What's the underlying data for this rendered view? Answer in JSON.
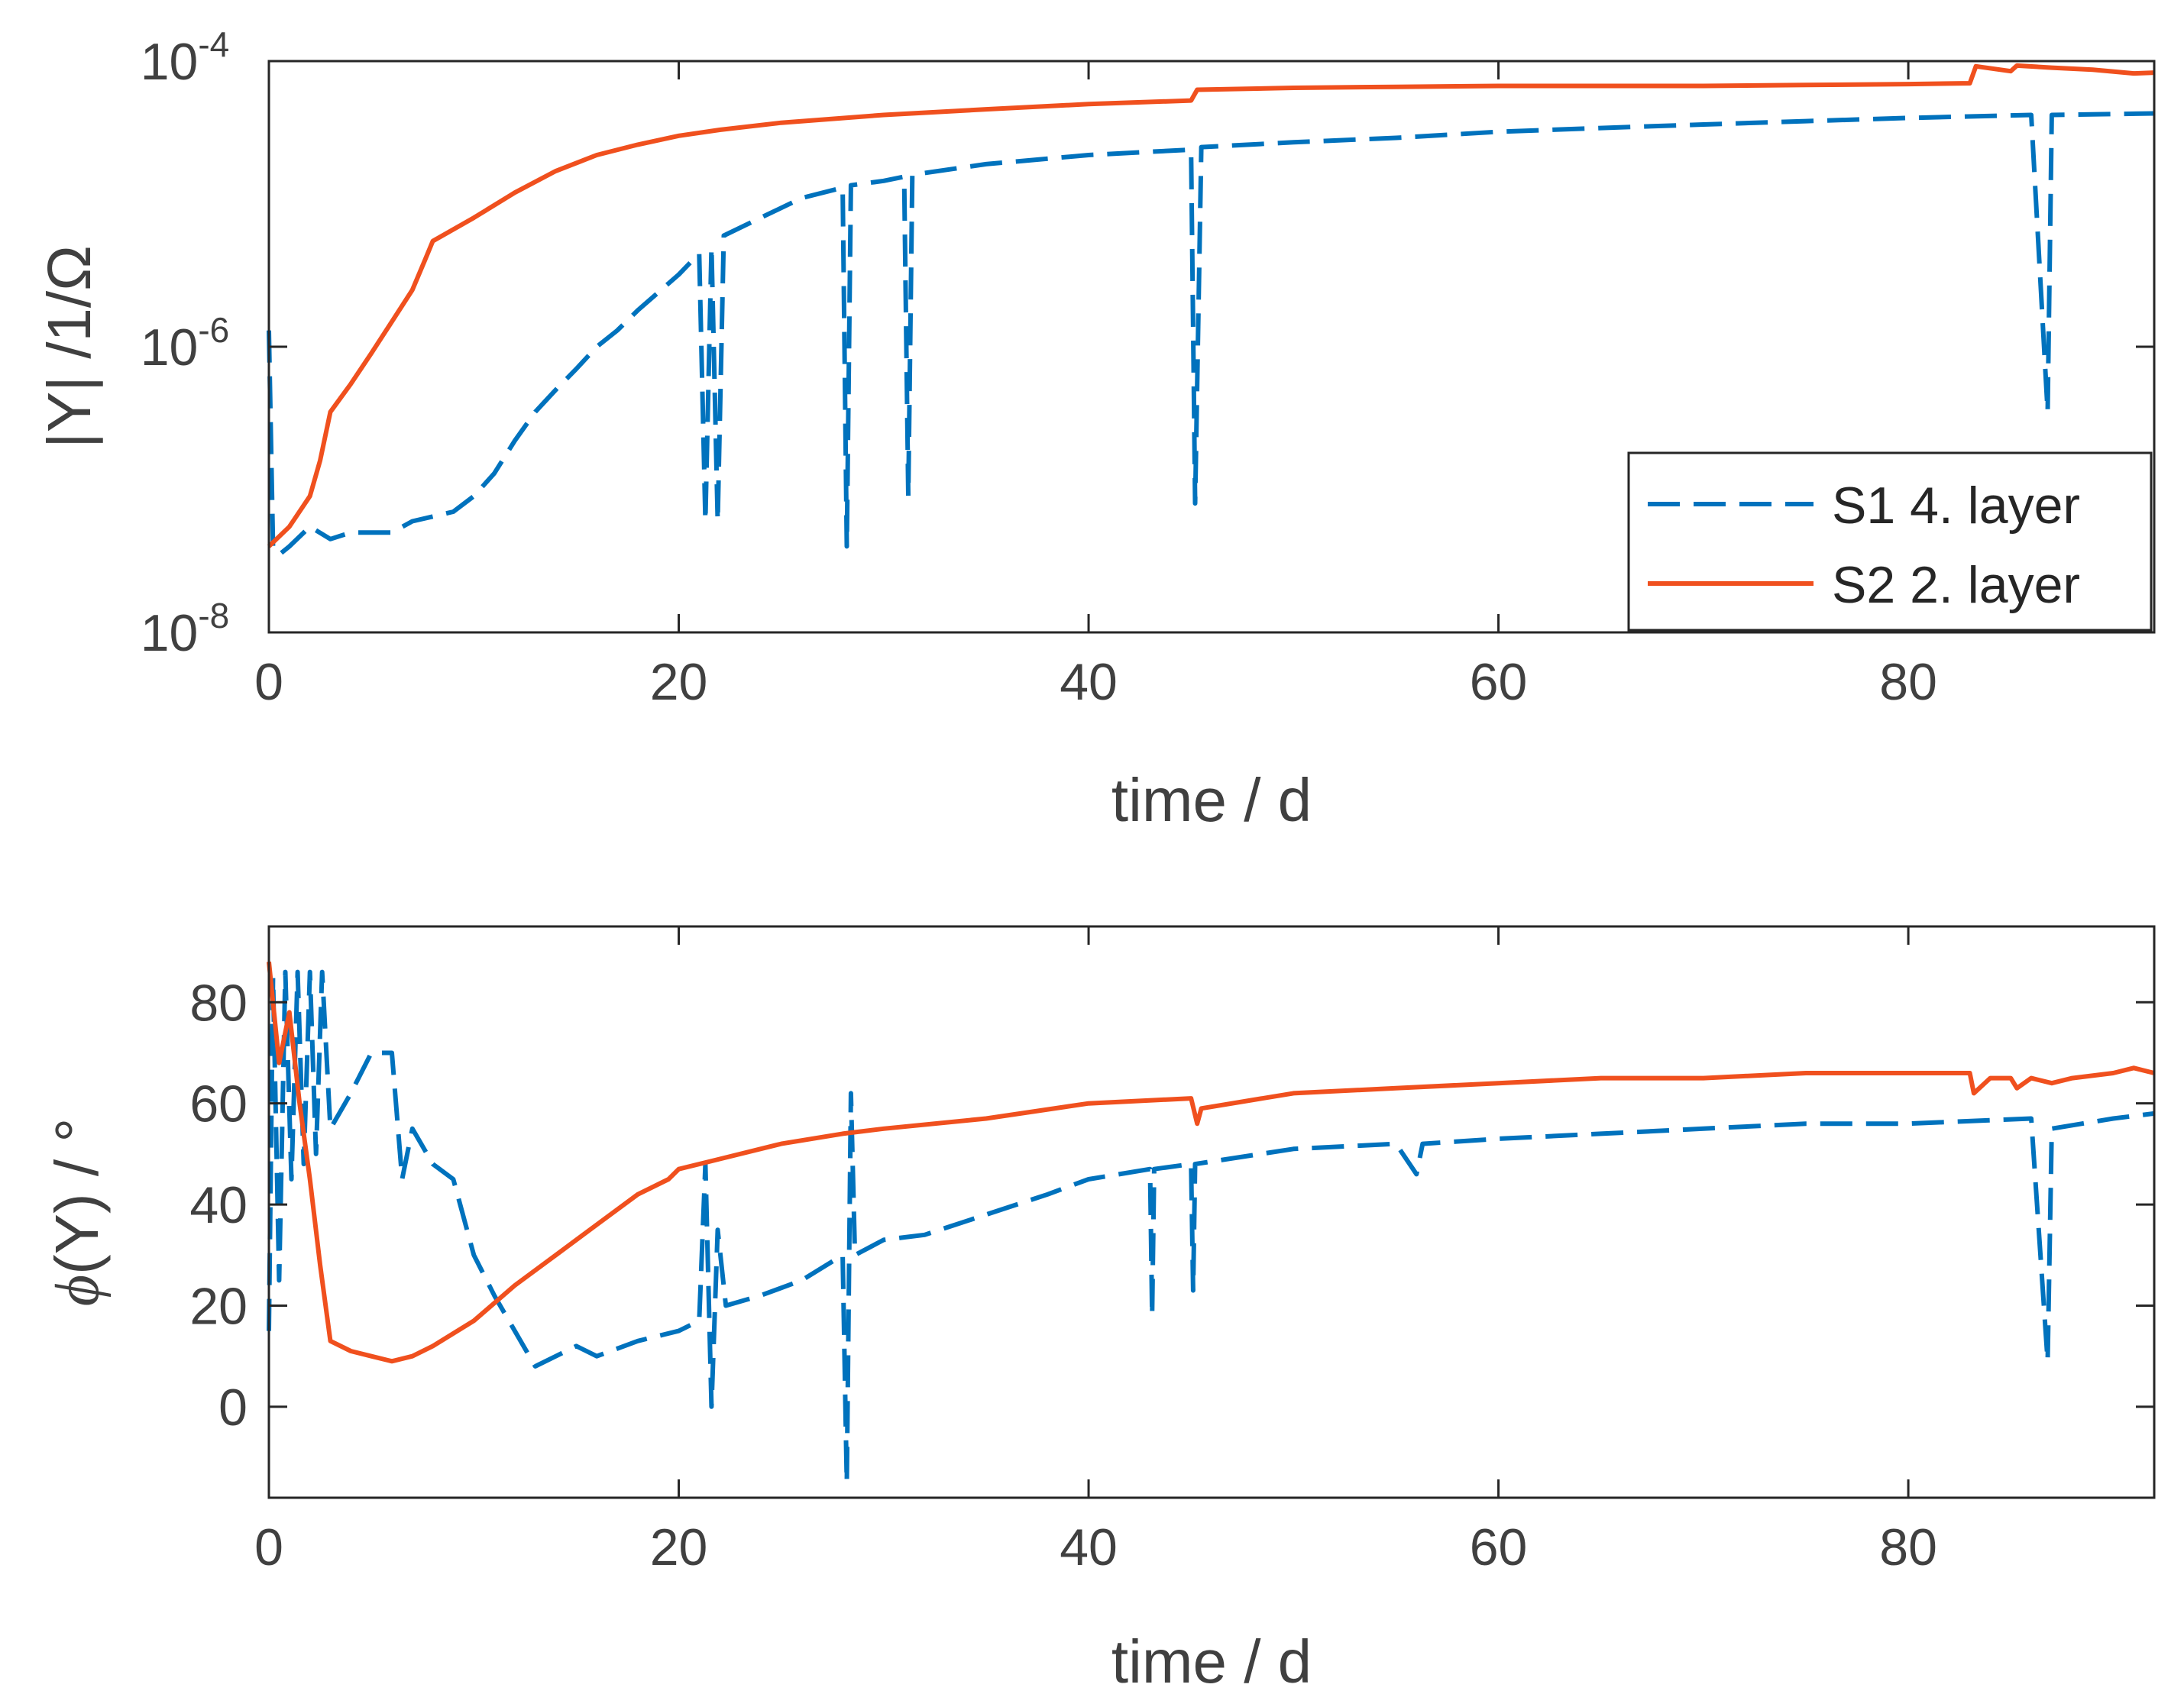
{
  "chart_data": [
    {
      "type": "line",
      "id": "magnitude",
      "xlabel": "time / d",
      "ylabel": "|Y| /1/Ω",
      "yscale": "log",
      "xlim": [
        0,
        92
      ],
      "ylim": [
        1e-08,
        0.0001
      ],
      "xticks": [
        0,
        20,
        40,
        60,
        80
      ],
      "xtick_labels": [
        "0",
        "20",
        "40",
        "60",
        "80"
      ],
      "yticks": [
        1e-08,
        1e-06,
        0.0001
      ],
      "ytick_labels": [
        {
          "base": "10",
          "exp": "-8"
        },
        {
          "base": "10",
          "exp": "-6"
        },
        {
          "base": "10",
          "exp": "-4"
        }
      ],
      "legend": {
        "position": "bottom-right",
        "entries": [
          "S1 4. layer",
          "S2 2. layer"
        ]
      },
      "series": [
        {
          "name": "S1 4. layer",
          "color": "#0072BD",
          "style": "dashed",
          "points": [
            [
              0,
              1.3e-06
            ],
            [
              0.2,
              4e-08
            ],
            [
              0.5,
              3.5e-08
            ],
            [
              1,
              4e-08
            ],
            [
              2,
              5.5e-08
            ],
            [
              3,
              4.5e-08
            ],
            [
              4,
              5e-08
            ],
            [
              6,
              5e-08
            ],
            [
              7,
              6e-08
            ],
            [
              9,
              7e-08
            ],
            [
              10,
              9e-08
            ],
            [
              11,
              1.3e-07
            ],
            [
              12,
              2.2e-07
            ],
            [
              13,
              3.5e-07
            ],
            [
              14,
              5e-07
            ],
            [
              15,
              7e-07
            ],
            [
              16,
              1e-06
            ],
            [
              17,
              1.3e-06
            ],
            [
              18,
              1.8e-06
            ],
            [
              19,
              2.4e-06
            ],
            [
              20,
              3.2e-06
            ],
            [
              21,
              4.5e-06
            ],
            [
              21.3,
              6e-08
            ],
            [
              21.6,
              5e-06
            ],
            [
              21.9,
              6e-08
            ],
            [
              22.2,
              6e-06
            ],
            [
              24,
              8e-06
            ],
            [
              26,
              1.1e-05
            ],
            [
              28,
              1.3e-05
            ],
            [
              28.2,
              4e-08
            ],
            [
              28.4,
              1.35e-05
            ],
            [
              30,
              1.45e-05
            ],
            [
              31,
              1.55e-05
            ],
            [
              31.2,
              9e-08
            ],
            [
              31.4,
              1.6e-05
            ],
            [
              35,
              1.9e-05
            ],
            [
              40,
              2.2e-05
            ],
            [
              45,
              2.4e-05
            ],
            [
              45.2,
              8e-08
            ],
            [
              45.5,
              2.5e-05
            ],
            [
              50,
              2.7e-05
            ],
            [
              55,
              2.9e-05
            ],
            [
              60,
              3.2e-05
            ],
            [
              65,
              3.4e-05
            ],
            [
              70,
              3.6e-05
            ],
            [
              75,
              3.8e-05
            ],
            [
              80,
              4e-05
            ],
            [
              86,
              4.2e-05
            ],
            [
              86.8,
              3.5e-07
            ],
            [
              87,
              4.2e-05
            ],
            [
              92,
              4.3e-05
            ]
          ]
        },
        {
          "name": "S2 2. layer",
          "color": "#F0501E",
          "style": "solid",
          "points": [
            [
              0,
              4e-08
            ],
            [
              1,
              5.5e-08
            ],
            [
              2,
              9e-08
            ],
            [
              2.5,
              1.6e-07
            ],
            [
              3,
              3.5e-07
            ],
            [
              4,
              5.5e-07
            ],
            [
              5,
              9e-07
            ],
            [
              6,
              1.5e-06
            ],
            [
              7,
              2.5e-06
            ],
            [
              7.6,
              4e-06
            ],
            [
              8,
              5.5e-06
            ],
            [
              10,
              8e-06
            ],
            [
              12,
              1.2e-05
            ],
            [
              14,
              1.7e-05
            ],
            [
              16,
              2.2e-05
            ],
            [
              18,
              2.6e-05
            ],
            [
              20,
              3e-05
            ],
            [
              22,
              3.3e-05
            ],
            [
              25,
              3.7e-05
            ],
            [
              30,
              4.2e-05
            ],
            [
              35,
              4.6e-05
            ],
            [
              40,
              5e-05
            ],
            [
              45,
              5.3e-05
            ],
            [
              45.3,
              6.3e-05
            ],
            [
              50,
              6.5e-05
            ],
            [
              55,
              6.6e-05
            ],
            [
              60,
              6.7e-05
            ],
            [
              65,
              6.7e-05
            ],
            [
              70,
              6.7e-05
            ],
            [
              75,
              6.8e-05
            ],
            [
              80,
              6.9e-05
            ],
            [
              83,
              7e-05
            ],
            [
              83.3,
              9.2e-05
            ],
            [
              85,
              8.5e-05
            ],
            [
              85.3,
              9.3e-05
            ],
            [
              87,
              9e-05
            ],
            [
              89,
              8.7e-05
            ],
            [
              91,
              8.2e-05
            ],
            [
              92,
              8.3e-05
            ]
          ]
        }
      ]
    },
    {
      "type": "line",
      "id": "phase",
      "xlabel": "time / d",
      "ylabel_symbol": "ϕ",
      "ylabel_rest": "(Y) / °",
      "yscale": "linear",
      "xlim": [
        0,
        92
      ],
      "ylim": [
        -18,
        95
      ],
      "xticks": [
        0,
        20,
        40,
        60,
        80
      ],
      "xtick_labels": [
        "0",
        "20",
        "40",
        "60",
        "80"
      ],
      "yticks": [
        0,
        20,
        40,
        60,
        80
      ],
      "ytick_labels": [
        "0",
        "20",
        "40",
        "60",
        "80"
      ],
      "series": [
        {
          "name": "S1 4. layer",
          "color": "#0072BD",
          "style": "dashed",
          "points": [
            [
              0,
              15
            ],
            [
              0.2,
              85
            ],
            [
              0.5,
              25
            ],
            [
              0.8,
              86
            ],
            [
              1.1,
              45
            ],
            [
              1.4,
              86
            ],
            [
              1.7,
              48
            ],
            [
              2,
              86
            ],
            [
              2.3,
              50
            ],
            [
              2.6,
              86
            ],
            [
              3,
              55
            ],
            [
              4,
              62
            ],
            [
              5,
              70
            ],
            [
              6,
              70
            ],
            [
              6.5,
              45
            ],
            [
              7,
              55
            ],
            [
              8,
              48
            ],
            [
              9,
              45
            ],
            [
              10,
              30
            ],
            [
              11,
              22
            ],
            [
              12,
              15
            ],
            [
              13,
              8
            ],
            [
              14,
              10
            ],
            [
              15,
              12
            ],
            [
              16,
              10
            ],
            [
              18,
              13
            ],
            [
              20,
              15
            ],
            [
              21,
              17
            ],
            [
              21.3,
              48
            ],
            [
              21.6,
              0
            ],
            [
              21.9,
              35
            ],
            [
              22.3,
              20
            ],
            [
              24,
              22
            ],
            [
              26,
              25
            ],
            [
              28,
              30
            ],
            [
              28.2,
              -15
            ],
            [
              28.4,
              62
            ],
            [
              28.6,
              30
            ],
            [
              30,
              33
            ],
            [
              32,
              34
            ],
            [
              35,
              38
            ],
            [
              38,
              42
            ],
            [
              40,
              45
            ],
            [
              43,
              47
            ],
            [
              43.1,
              18
            ],
            [
              43.2,
              47
            ],
            [
              45,
              48
            ],
            [
              45.1,
              23
            ],
            [
              45.2,
              48
            ],
            [
              50,
              51
            ],
            [
              55,
              52
            ],
            [
              56,
              46
            ],
            [
              56.3,
              52
            ],
            [
              60,
              53
            ],
            [
              65,
              54
            ],
            [
              70,
              55
            ],
            [
              75,
              56
            ],
            [
              80,
              56
            ],
            [
              86,
              57
            ],
            [
              86.8,
              9
            ],
            [
              87,
              55
            ],
            [
              90,
              57
            ],
            [
              92,
              58
            ]
          ]
        },
        {
          "name": "S2 2. layer",
          "color": "#F0501E",
          "style": "solid",
          "points": [
            [
              0,
              88
            ],
            [
              0.5,
              68
            ],
            [
              1,
              78
            ],
            [
              1.5,
              60
            ],
            [
              2,
              45
            ],
            [
              2.5,
              28
            ],
            [
              3,
              13
            ],
            [
              4,
              11
            ],
            [
              5,
              10
            ],
            [
              6,
              9
            ],
            [
              7,
              10
            ],
            [
              8,
              12
            ],
            [
              10,
              17
            ],
            [
              12,
              24
            ],
            [
              14,
              30
            ],
            [
              16,
              36
            ],
            [
              18,
              42
            ],
            [
              19.5,
              45
            ],
            [
              20,
              47
            ],
            [
              22,
              49
            ],
            [
              25,
              52
            ],
            [
              28,
              54
            ],
            [
              30,
              55
            ],
            [
              35,
              57
            ],
            [
              40,
              60
            ],
            [
              45,
              61
            ],
            [
              45.3,
              56
            ],
            [
              45.5,
              59
            ],
            [
              50,
              62
            ],
            [
              55,
              63
            ],
            [
              60,
              64
            ],
            [
              65,
              65
            ],
            [
              70,
              65
            ],
            [
              75,
              66
            ],
            [
              80,
              66
            ],
            [
              83,
              66
            ],
            [
              83.2,
              62
            ],
            [
              84,
              65
            ],
            [
              85,
              65
            ],
            [
              85.3,
              63
            ],
            [
              86,
              65
            ],
            [
              87,
              64
            ],
            [
              88,
              65
            ],
            [
              90,
              66
            ],
            [
              91,
              67
            ],
            [
              92,
              66
            ]
          ]
        }
      ]
    }
  ]
}
